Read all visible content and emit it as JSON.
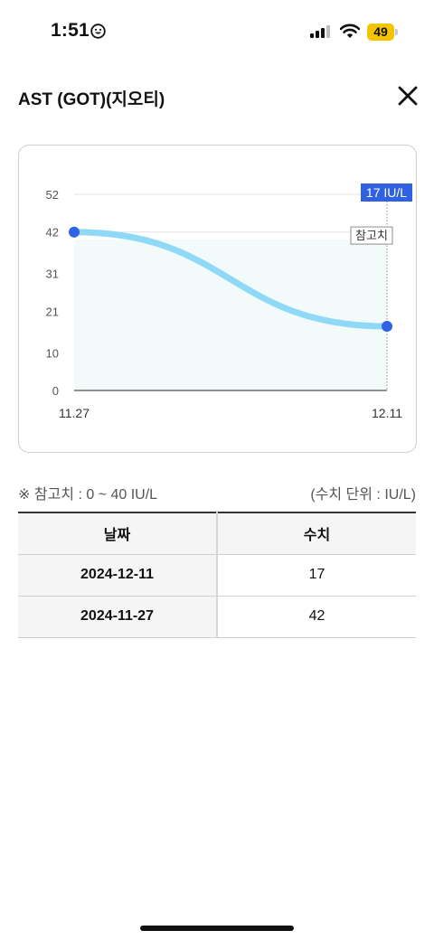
{
  "status_bar": {
    "time": "1:51",
    "battery_level": "49",
    "battery_color": "#f4c400"
  },
  "header": {
    "title": "AST (GOT)(지오티)",
    "close_icon": "close-icon"
  },
  "chart_data": {
    "type": "line",
    "categories": [
      "11.27",
      "12.11"
    ],
    "series": [
      {
        "values": [
          42,
          17
        ]
      }
    ],
    "y_ticks": [
      0,
      10,
      21,
      31,
      42,
      52
    ],
    "ylim": [
      0,
      52
    ],
    "reference_range": [
      0,
      40
    ],
    "reference_label": "참고치",
    "highlight_label": "17 IU/L",
    "colors": {
      "line": "#8fd9f7",
      "point": "#2e63e6",
      "highlight": "#2f61e0",
      "reference_fill": "#f3fafa"
    }
  },
  "legend": {
    "reference": "※ 참고치 : 0 ~ 40 IU/L",
    "unit": "(수치 단위 : IU/L)"
  },
  "table": {
    "headers": {
      "date": "날짜",
      "value": "수치"
    },
    "rows": [
      {
        "date": "2024-12-11",
        "value": "17"
      },
      {
        "date": "2024-11-27",
        "value": "42"
      }
    ]
  }
}
